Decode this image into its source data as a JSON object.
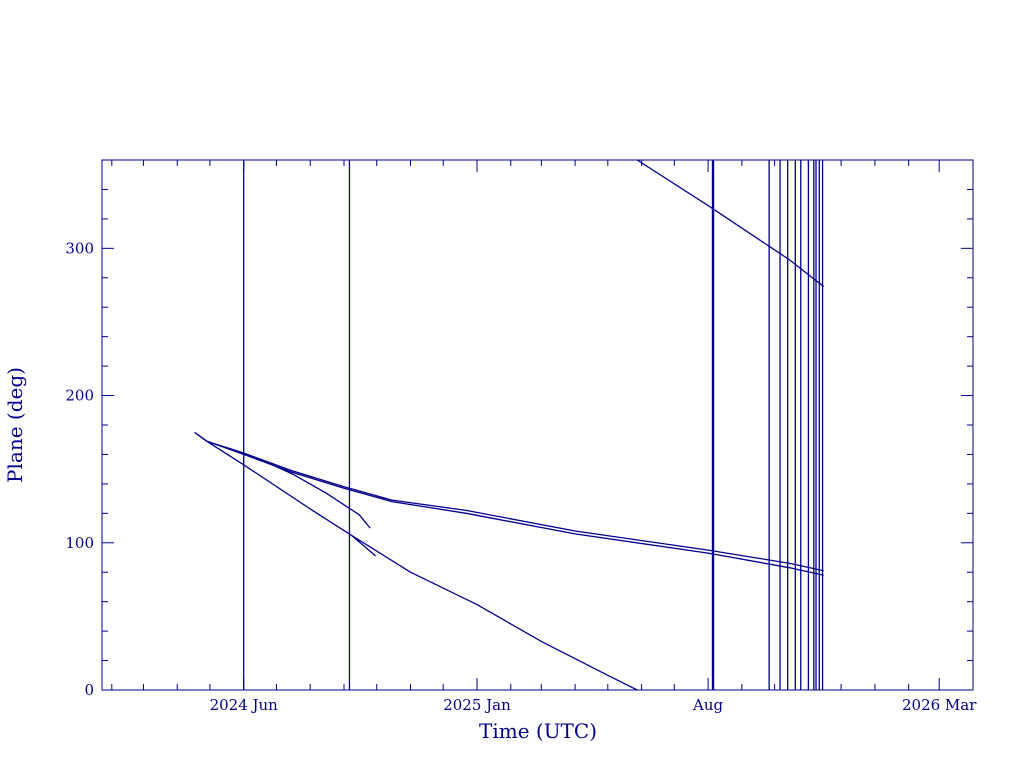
{
  "chart_data": {
    "type": "line",
    "title": "",
    "xlabel": "Time (UTC)",
    "ylabel": "Plane (deg)",
    "xlim": [
      "2024-01-23",
      "2026-04-01"
    ],
    "ylim": [
      0,
      360
    ],
    "x_ticks": [
      {
        "date": "2024-06-01",
        "label": "2024 Jun"
      },
      {
        "date": "2025-01-01",
        "label": "2025 Jan"
      },
      {
        "date": "2025-08-01",
        "label": "Aug"
      },
      {
        "date": "2026-03-01",
        "label": "2026 Mar"
      }
    ],
    "y_ticks": [
      0,
      100,
      200,
      300
    ],
    "line_color": "#00008b",
    "grid": false,
    "series": [
      {
        "values": [
          [
            "2024-04-17",
            175
          ],
          [
            "2024-04-28",
            169
          ],
          [
            "2024-06-01",
            161
          ],
          [
            "2024-07-15",
            149
          ],
          [
            "2024-09-01",
            138
          ],
          [
            "2024-10-15",
            129
          ],
          [
            "2024-12-22",
            122
          ],
          [
            "2025-04-01",
            108
          ],
          [
            "2025-08-01",
            95
          ],
          [
            "2025-10-15",
            86
          ],
          [
            "2025-11-15",
            81
          ]
        ]
      },
      {
        "values": [
          [
            "2024-04-28",
            169
          ],
          [
            "2024-06-01",
            160
          ],
          [
            "2024-07-15",
            148
          ],
          [
            "2024-09-01",
            137
          ],
          [
            "2024-10-15",
            128
          ],
          [
            "2024-12-22",
            120
          ],
          [
            "2025-04-01",
            106
          ],
          [
            "2025-08-01",
            93
          ],
          [
            "2025-10-15",
            83
          ],
          [
            "2025-11-15",
            78
          ]
        ]
      },
      {
        "values": [
          [
            "2024-04-17",
            175
          ],
          [
            "2024-04-28",
            169
          ],
          [
            "2024-06-01",
            153
          ],
          [
            "2024-08-01",
            123
          ],
          [
            "2024-09-08",
            105
          ],
          [
            "2024-11-01",
            80
          ],
          [
            "2025-01-01",
            58
          ],
          [
            "2025-03-01",
            33
          ],
          [
            "2025-05-01",
            10
          ],
          [
            "2025-05-28",
            0
          ]
        ]
      },
      {
        "values": [
          [
            "2024-09-08",
            105
          ],
          [
            "2024-09-30",
            91
          ]
        ]
      },
      {
        "values": [
          [
            "2024-05-15",
            165
          ],
          [
            "2024-06-15",
            157
          ],
          [
            "2024-07-15",
            147
          ],
          [
            "2024-08-15",
            134
          ],
          [
            "2024-09-15",
            119
          ],
          [
            "2024-09-25",
            110
          ]
        ]
      },
      {
        "values": [
          [
            "2025-05-28",
            360
          ],
          [
            "2025-08-01",
            329
          ],
          [
            "2025-10-15",
            292
          ],
          [
            "2025-11-15",
            274
          ]
        ]
      }
    ],
    "vertical_lines": [
      "2024-06-01",
      "2024-09-06",
      "2025-08-05",
      "2025-08-06",
      "2025-09-26",
      "2025-10-06",
      "2025-10-13",
      "2025-10-20",
      "2025-10-25",
      "2025-11-01",
      "2025-11-06",
      "2025-11-08",
      "2025-11-11",
      "2025-11-14"
    ]
  }
}
